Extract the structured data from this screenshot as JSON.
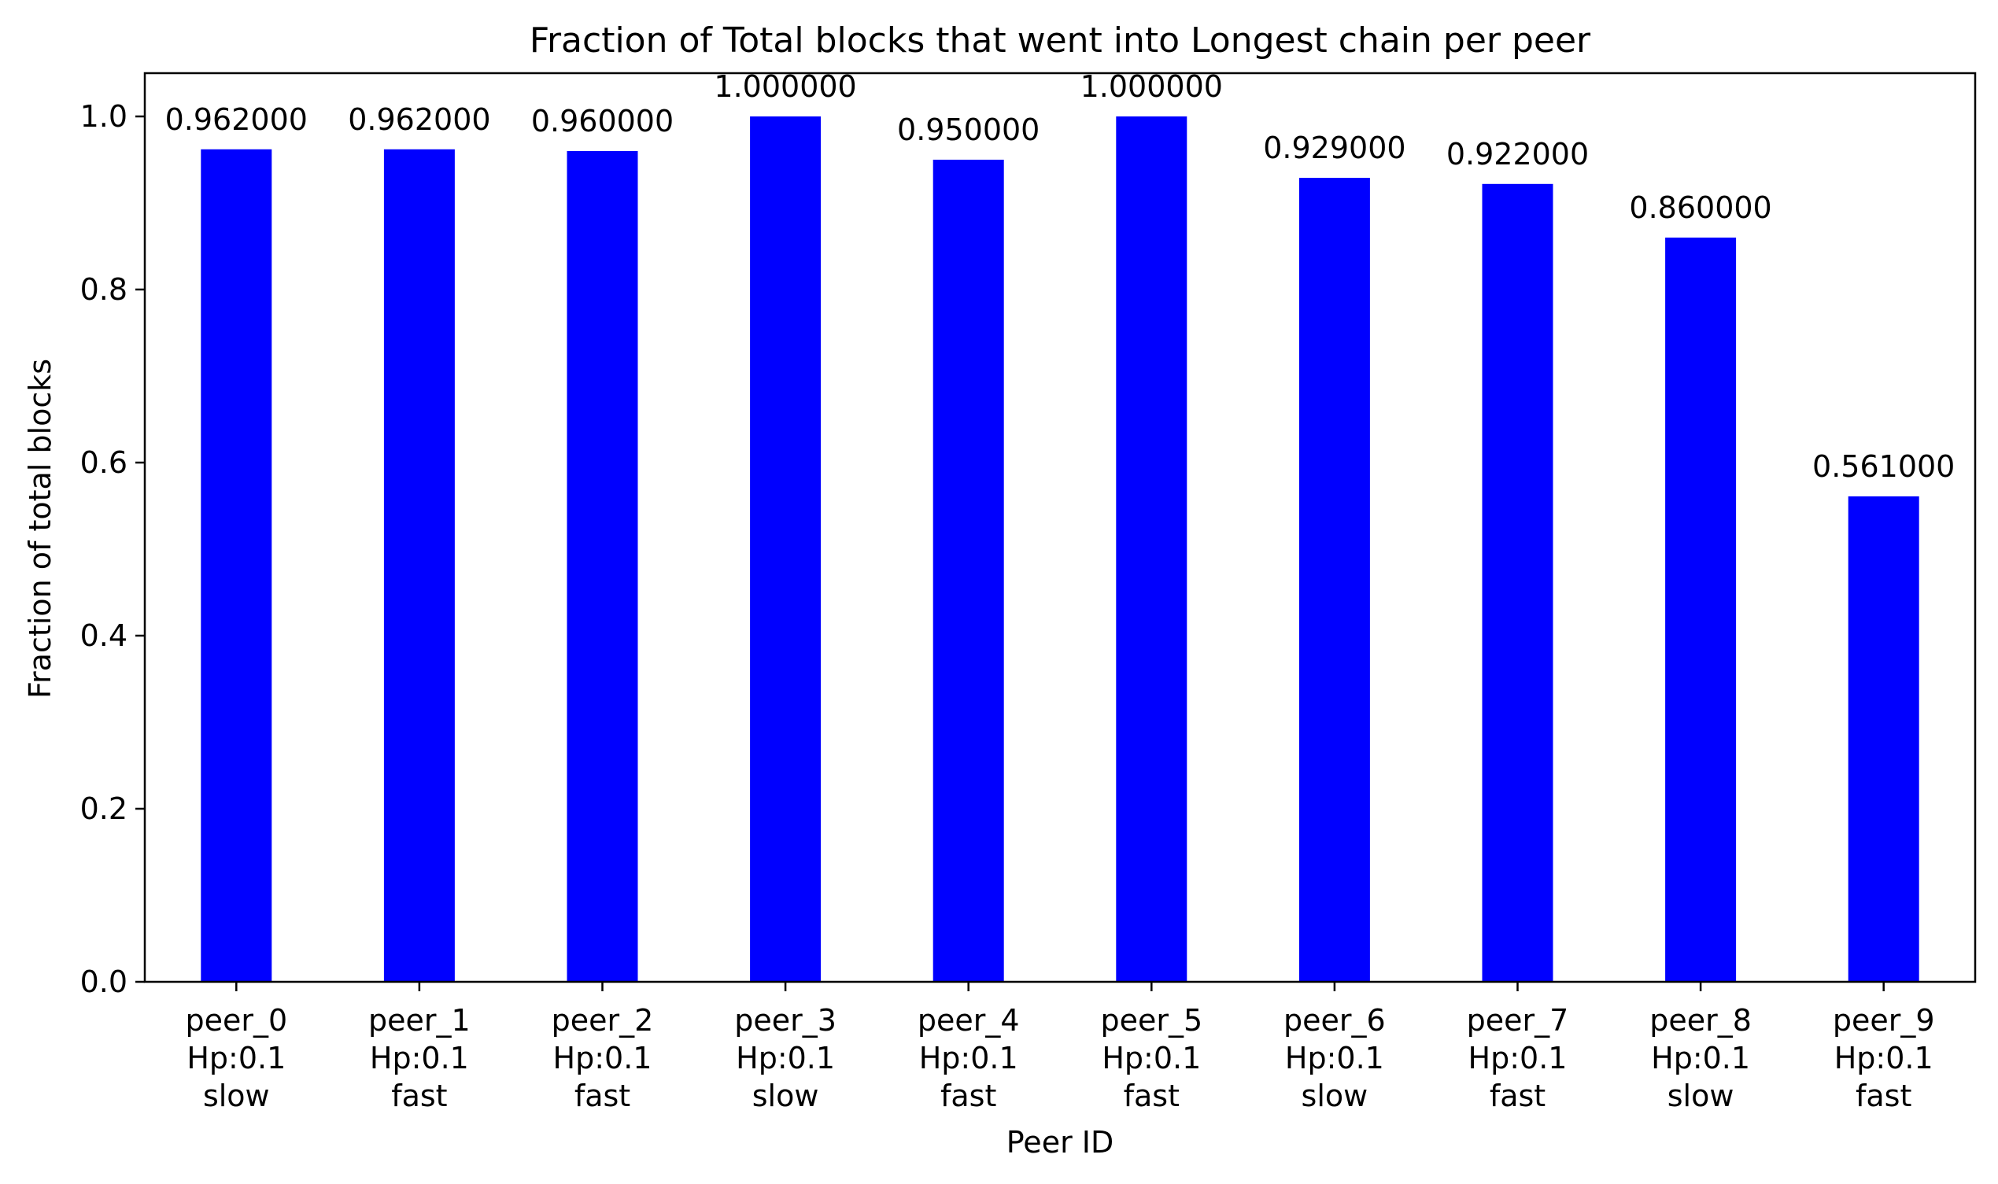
{
  "chart_data": {
    "type": "bar",
    "title": "Fraction of Total blocks that went into Longest chain per peer",
    "xlabel": "Peer ID",
    "ylabel": "Fraction of total blocks",
    "ylim": [
      0,
      1.05
    ],
    "yticks": [
      "0.0",
      "0.2",
      "0.4",
      "0.6",
      "0.8",
      "1.0"
    ],
    "bar_color": "#0000ff",
    "grid": false,
    "categories": [
      [
        "peer_0",
        "Hp:0.1",
        "slow"
      ],
      [
        "peer_1",
        "Hp:0.1",
        "fast"
      ],
      [
        "peer_2",
        "Hp:0.1",
        "fast"
      ],
      [
        "peer_3",
        "Hp:0.1",
        "slow"
      ],
      [
        "peer_4",
        "Hp:0.1",
        "fast"
      ],
      [
        "peer_5",
        "Hp:0.1",
        "fast"
      ],
      [
        "peer_6",
        "Hp:0.1",
        "slow"
      ],
      [
        "peer_7",
        "Hp:0.1",
        "fast"
      ],
      [
        "peer_8",
        "Hp:0.1",
        "slow"
      ],
      [
        "peer_9",
        "Hp:0.1",
        "fast"
      ]
    ],
    "values": [
      0.962,
      0.962,
      0.96,
      1.0,
      0.95,
      1.0,
      0.929,
      0.922,
      0.86,
      0.561
    ],
    "data_labels": [
      "0.962000",
      "0.962000",
      "0.960000",
      "1.000000",
      "0.950000",
      "1.000000",
      "0.929000",
      "0.922000",
      "0.860000",
      "0.561000"
    ]
  }
}
